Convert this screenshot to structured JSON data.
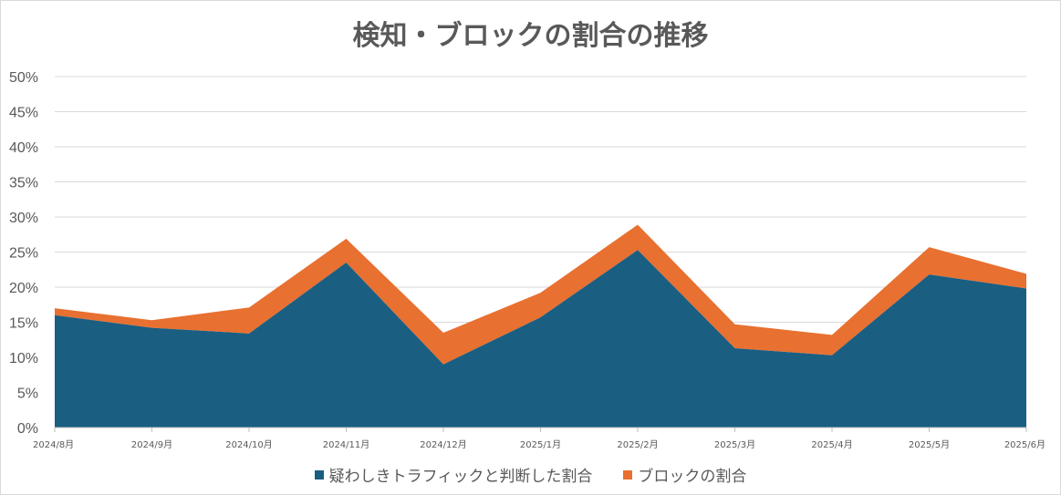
{
  "chart_data": {
    "type": "area",
    "stacked": true,
    "title": "検知・ブロックの割合の推移",
    "xlabel": "",
    "ylabel": "",
    "ylim": [
      0,
      0.5
    ],
    "y_ticks": [
      "0%",
      "5%",
      "10%",
      "15%",
      "20%",
      "25%",
      "30%",
      "35%",
      "40%",
      "45%",
      "50%"
    ],
    "grid": true,
    "legend_position": "bottom",
    "categories": [
      "2024/8月",
      "2024/9月",
      "2024/10月",
      "2024/11月",
      "2024/12月",
      "2025/1月",
      "2025/2月",
      "2025/3月",
      "2025/4月",
      "2025/5月",
      "2025/6月"
    ],
    "series": [
      {
        "name": "疑わしきトラフィックと判断した割合",
        "color": "#1a5e82",
        "values": [
          0.16,
          0.142,
          0.134,
          0.235,
          0.09,
          0.157,
          0.253,
          0.113,
          0.103,
          0.218,
          0.198
        ]
      },
      {
        "name": "ブロックの割合",
        "color": "#e87030",
        "values": [
          0.01,
          0.011,
          0.037,
          0.034,
          0.045,
          0.035,
          0.036,
          0.034,
          0.029,
          0.039,
          0.021
        ]
      }
    ]
  }
}
